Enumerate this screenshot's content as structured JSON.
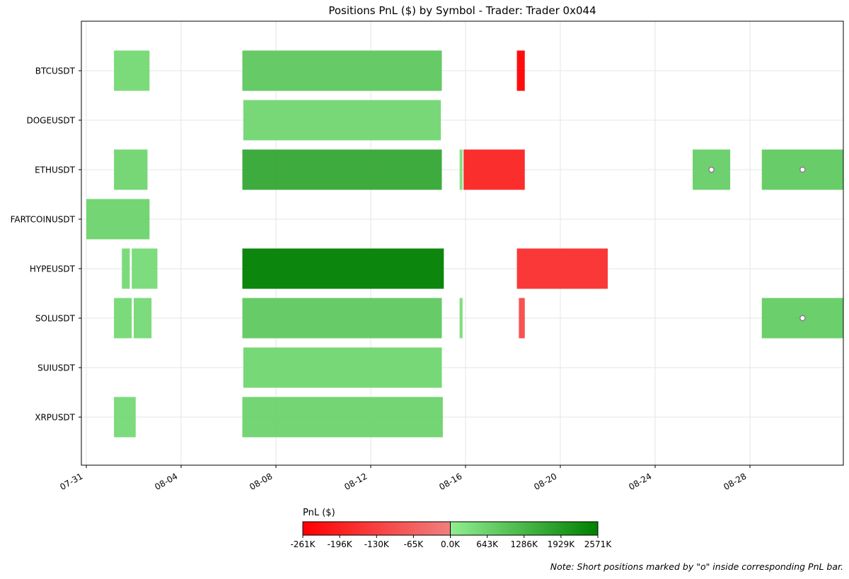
{
  "chart_data": {
    "type": "bar",
    "subtype": "timeline-heatmap",
    "title": "Positions PnL ($) by Symbol - Trader: Trader 0x044",
    "xlabel": "",
    "ylabel": "",
    "x_ticks": [
      "07-31",
      "08-04",
      "08-08",
      "08-12",
      "08-16",
      "08-20",
      "08-24",
      "08-28"
    ],
    "x_range": [
      "07-31",
      "09-01"
    ],
    "grid": true,
    "categories": [
      "BTCUSDT",
      "DOGEUSDT",
      "ETHUSDT",
      "FARTCOINUSDT",
      "HYPEUSDT",
      "SOLUSDT",
      "SUIUSDT",
      "XRPUSDT"
    ],
    "positions": [
      {
        "symbol": "BTCUSDT",
        "start": "08-01 04:00",
        "end": "08-02 16:00",
        "pnl_k": 500,
        "short": false
      },
      {
        "symbol": "BTCUSDT",
        "start": "08-06 14:00",
        "end": "08-15 00:00",
        "pnl_k": 900,
        "short": false
      },
      {
        "symbol": "BTCUSDT",
        "start": "08-18 04:00",
        "end": "08-18 12:00",
        "pnl_k": -261,
        "short": false
      },
      {
        "symbol": "DOGEUSDT",
        "start": "08-06 15:00",
        "end": "08-14 23:00",
        "pnl_k": 560,
        "short": false
      },
      {
        "symbol": "ETHUSDT",
        "start": "08-01 04:00",
        "end": "08-02 14:00",
        "pnl_k": 580,
        "short": false
      },
      {
        "symbol": "ETHUSDT",
        "start": "08-06 14:00",
        "end": "08-15 00:00",
        "pnl_k": 1650,
        "short": false
      },
      {
        "symbol": "ETHUSDT",
        "start": "08-15 18:00",
        "end": "08-15 21:00",
        "pnl_k": 350,
        "short": false
      },
      {
        "symbol": "ETHUSDT",
        "start": "08-15 22:00",
        "end": "08-18 12:00",
        "pnl_k": -190,
        "short": false
      },
      {
        "symbol": "ETHUSDT",
        "start": "08-25 14:00",
        "end": "08-27 04:00",
        "pnl_k": 750,
        "short": true
      },
      {
        "symbol": "ETHUSDT",
        "start": "08-28 12:00",
        "end": "09-01 00:00",
        "pnl_k": 850,
        "short": true
      },
      {
        "symbol": "FARTCOINUSDT",
        "start": "07-31 00:00",
        "end": "08-02 16:00",
        "pnl_k": 640,
        "short": false
      },
      {
        "symbol": "HYPEUSDT",
        "start": "08-01 12:00",
        "end": "08-01 20:00",
        "pnl_k": 500,
        "short": false
      },
      {
        "symbol": "HYPEUSDT",
        "start": "08-01 22:00",
        "end": "08-03 00:00",
        "pnl_k": 470,
        "short": false
      },
      {
        "symbol": "HYPEUSDT",
        "start": "08-06 14:00",
        "end": "08-15 02:00",
        "pnl_k": 2571,
        "short": false
      },
      {
        "symbol": "HYPEUSDT",
        "start": "08-18 04:00",
        "end": "08-22 00:00",
        "pnl_k": -170,
        "short": false
      },
      {
        "symbol": "SOLUSDT",
        "start": "08-01 04:00",
        "end": "08-01 22:00",
        "pnl_k": 500,
        "short": false
      },
      {
        "symbol": "SOLUSDT",
        "start": "08-02 00:00",
        "end": "08-02 18:00",
        "pnl_k": 480,
        "short": false
      },
      {
        "symbol": "SOLUSDT",
        "start": "08-06 14:00",
        "end": "08-15 00:00",
        "pnl_k": 870,
        "short": false
      },
      {
        "symbol": "SOLUSDT",
        "start": "08-15 18:00",
        "end": "08-15 21:00",
        "pnl_k": 400,
        "short": false
      },
      {
        "symbol": "SOLUSDT",
        "start": "08-18 06:00",
        "end": "08-18 12:00",
        "pnl_k": -110,
        "short": false
      },
      {
        "symbol": "SOLUSDT",
        "start": "08-28 12:00",
        "end": "09-01 00:00",
        "pnl_k": 800,
        "short": true
      },
      {
        "symbol": "SUIUSDT",
        "start": "08-06 15:00",
        "end": "08-15 00:00",
        "pnl_k": 570,
        "short": false
      },
      {
        "symbol": "XRPUSDT",
        "start": "08-01 04:00",
        "end": "08-02 02:00",
        "pnl_k": 490,
        "short": false
      },
      {
        "symbol": "XRPUSDT",
        "start": "08-06 14:00",
        "end": "08-15 01:00",
        "pnl_k": 630,
        "short": false
      }
    ],
    "colorbar": {
      "label": "PnL ($)",
      "ticks": [
        "-261K",
        "-196K",
        "-130K",
        "-65K",
        "0.0K",
        "643K",
        "1286K",
        "1929K",
        "2571K"
      ],
      "min_k": -261,
      "max_k": 2571,
      "negative_colors": [
        "#ff0000",
        "#f08080"
      ],
      "positive_colors": [
        "#90ee90",
        "#008000"
      ],
      "placement": "bottom-center"
    },
    "note": "Note: Short positions marked by \"o\" inside corresponding PnL bar."
  }
}
